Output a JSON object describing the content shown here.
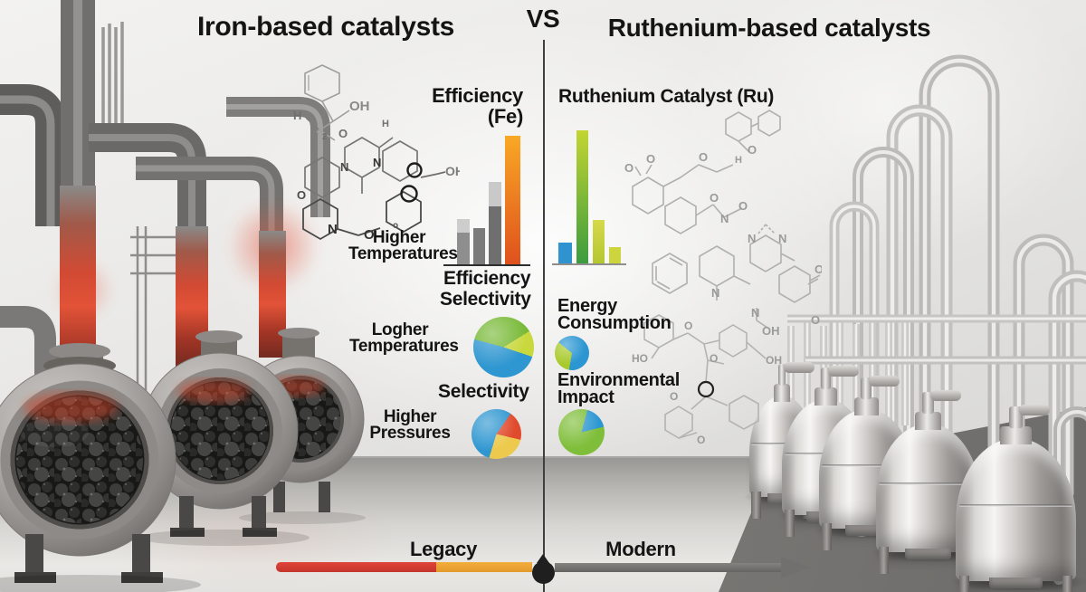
{
  "header": {
    "left_title": "Iron-based catalysts",
    "vs": "VS",
    "right_title": "Ruthenium-based catalysts"
  },
  "left": {
    "eff_title": [
      "Efficiency",
      "(Fe)"
    ],
    "eff_side_label": [
      "Higher",
      "Temperatures"
    ],
    "eff_xlabel": "Efficiency",
    "sel1_heading": "Selectivity",
    "sel1_label": [
      "Logher",
      "Temperatures"
    ],
    "sel2_heading": "Selectivity",
    "sel2_label": [
      "Higher",
      "Pressures"
    ]
  },
  "right": {
    "title": "Ruthenium Catalyst (Ru)",
    "energy_label": [
      "Energy",
      "Consumption"
    ],
    "env_label": [
      "Environmental",
      "Impact"
    ]
  },
  "timeline": {
    "legacy": "Legacy",
    "modern": "Modern",
    "red_color": "#d23b2f",
    "orange_color": "#eda631",
    "gray_color": "#6f6e6c",
    "dot_color": "#1f1f1f"
  },
  "chem": {
    "left_atoms": [
      "H",
      "OH",
      "2",
      "O",
      "H",
      "N",
      "N",
      "O",
      "N",
      "O",
      "OH",
      "o"
    ],
    "right1_atoms": [
      "O",
      "O",
      "O",
      "O",
      "H",
      "O",
      "N",
      "O",
      "N",
      "N",
      "N",
      "O",
      "N",
      "O",
      "OH"
    ],
    "right2_atoms": [
      "HO",
      "O",
      "O",
      "OH",
      "O",
      "O"
    ]
  },
  "chart_data": [
    {
      "type": "bar",
      "title": "Efficiency (Fe)",
      "xlabel": "Efficiency",
      "context_label": "Higher Temperatures",
      "ylim": [
        0,
        100
      ],
      "bars": [
        {
          "value": 35,
          "w": 14,
          "color": "#8e8e8e",
          "cap": 0.3,
          "cap_color": "#cdcdcd"
        },
        {
          "value": 28,
          "w": 13,
          "color": "#7b7b7b"
        },
        {
          "value": 64,
          "w": 14,
          "color": "#6f6f6f",
          "cap": 0.3,
          "cap_color": "#c9c9c9"
        },
        {
          "value": 100,
          "w": 17,
          "gradient": [
            "#f9a825",
            "#df511d"
          ]
        }
      ]
    },
    {
      "type": "bar",
      "title": "Ruthenium Catalyst (Ru)",
      "context_labels": [
        "Energy Consumption",
        "Environmental Impact"
      ],
      "ylim": [
        0,
        100
      ],
      "bars": [
        {
          "value": 16,
          "w": 15,
          "color": "#2f93cf"
        },
        {
          "value": 100,
          "w": 13,
          "gradient": [
            "#c3d532",
            "#3b9b3f"
          ]
        },
        {
          "value": 33,
          "w": 13,
          "gradient": [
            "#d6d94b",
            "#b3c62f"
          ]
        },
        {
          "value": 13,
          "w": 13,
          "color": "#ccd53e"
        }
      ]
    },
    {
      "type": "pie",
      "title": "Selectivity (Logher Temperatures)",
      "start_angle": 285,
      "slices": [
        {
          "name": "green",
          "value": 37,
          "color": "#76b834"
        },
        {
          "name": "yellow-green",
          "value": 14,
          "color": "#c9d83d"
        },
        {
          "name": "blue",
          "value": 49,
          "color": "#2e96d0"
        }
      ]
    },
    {
      "type": "pie",
      "title": "Selectivity (Higher Pressures)",
      "start_angle": 35,
      "slices": [
        {
          "name": "red",
          "value": 19,
          "color": "#e04b2d"
        },
        {
          "name": "yellow",
          "value": 26,
          "color": "#edc94d"
        },
        {
          "name": "blue",
          "value": 55,
          "color": "#2e96d0"
        }
      ]
    },
    {
      "type": "pie",
      "title": "Energy Consumption",
      "start_angle": 190,
      "slices": [
        {
          "name": "green",
          "value": 33,
          "color": "#a8c929"
        },
        {
          "name": "blue",
          "value": 67,
          "color": "#2b96d1"
        }
      ]
    },
    {
      "type": "pie",
      "title": "Environmental Impact",
      "start_angle": 15,
      "slices": [
        {
          "name": "blue",
          "value": 17,
          "color": "#2b96d1"
        },
        {
          "name": "green",
          "value": 83,
          "color": "#7fbe3a"
        }
      ]
    }
  ]
}
